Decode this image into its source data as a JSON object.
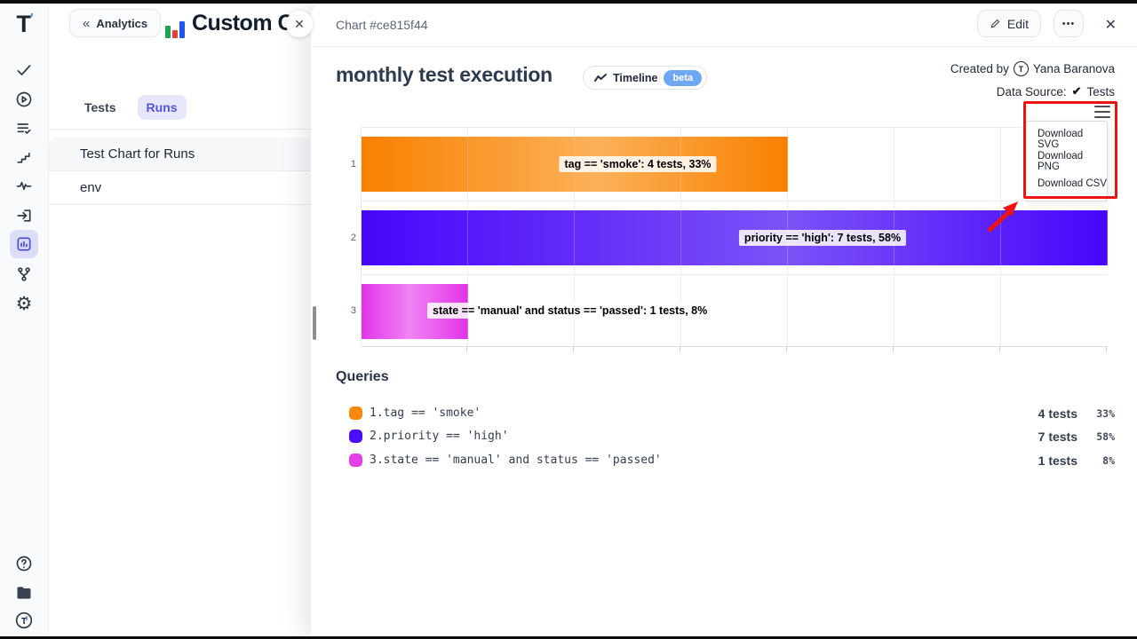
{
  "window": {
    "chrome_color": "#0b0b0b"
  },
  "sidebar": {
    "logo": "T",
    "nav_icons": [
      "check",
      "play-circle",
      "list-check",
      "stairs",
      "activity",
      "sign-in",
      "bar-chart",
      "git-branch",
      "settings"
    ],
    "active_icon": "bar-chart",
    "footer_icons": [
      "help",
      "folder",
      "testomat-logo"
    ],
    "settings_glyph": "⚙"
  },
  "list_panel": {
    "back_chevron": "«",
    "back_button": "Analytics",
    "page_title": "Custom C",
    "page_title_clip": "(",
    "panel_close": "✕",
    "tabs": [
      {
        "label": "Tests",
        "active": false
      },
      {
        "label": "Runs",
        "active": true
      }
    ],
    "items": [
      "Test Chart for Runs",
      "env"
    ]
  },
  "overlay": {
    "header": {
      "chart_ref": "Chart #ce815f44",
      "edit_label": "Edit",
      "more_label": "•••",
      "close": "✕"
    },
    "title": "monthly test execution",
    "timeline": {
      "label": "Timeline",
      "beta": "beta",
      "beta_color": "#6ea8f3"
    },
    "meta": {
      "created_by_label": "Created by",
      "author": "Yana Baranova",
      "avatar_initial": "T",
      "data_source_label": "Data Source:",
      "data_source_check": "✔",
      "data_source_value": "Tests"
    },
    "menu": {
      "items": [
        "Download SVG",
        "Download PNG",
        "Download CSV"
      ],
      "highlight_color": "#ea1410"
    },
    "chart_data": {
      "type": "bar",
      "orientation": "horizontal",
      "title": "monthly test execution",
      "categories": [
        "1",
        "2",
        "3"
      ],
      "values": [
        4,
        7,
        1
      ],
      "unit": "tests",
      "percents": [
        33,
        58,
        8
      ],
      "xlim": [
        0,
        7
      ],
      "grid": true,
      "legend_position": "below",
      "bar_labels": [
        "tag == 'smoke': 4 tests, 33%",
        "priority == 'high': 7 tests, 58%",
        "state == 'manual' and status == 'passed': 1 tests, 8%"
      ],
      "gradients": [
        {
          "edge": "#f88000",
          "mid": "#fcb159",
          "mid_pos": "55%"
        },
        {
          "edge": "#4606fa",
          "mid": "#7c52f8",
          "mid_pos": "57%"
        },
        {
          "edge": "#e233e8",
          "mid": "#f083f3",
          "mid_pos": "45%"
        }
      ]
    },
    "queries": {
      "heading": "Queries",
      "items": [
        {
          "num": "1.",
          "query": "tag == 'smoke'",
          "tests": "4 tests",
          "percent": "33%",
          "color": "#f8860f"
        },
        {
          "num": "2.",
          "query": "priority == 'high'",
          "tests": "7 tests",
          "percent": "58%",
          "color": "#4a0dfb"
        },
        {
          "num": "3.",
          "query": "state == 'manual' and status == 'passed'",
          "tests": "1 tests",
          "percent": "8%",
          "color": "#e23fe6"
        }
      ]
    }
  }
}
